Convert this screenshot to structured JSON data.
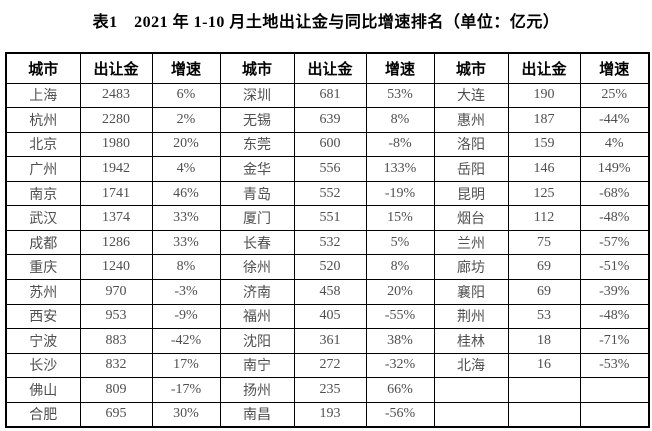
{
  "title": "表1　2021 年 1-10 月土地出让金与同比增速排名（单位：亿元）",
  "table": {
    "columns": [
      "城市",
      "出让金",
      "增速"
    ],
    "groups": [
      {
        "rows": [
          {
            "city": "上海",
            "amount": "2483",
            "growth": "6%"
          },
          {
            "city": "杭州",
            "amount": "2280",
            "growth": "2%"
          },
          {
            "city": "北京",
            "amount": "1980",
            "growth": "20%"
          },
          {
            "city": "广州",
            "amount": "1942",
            "growth": "4%"
          },
          {
            "city": "南京",
            "amount": "1741",
            "growth": "46%"
          },
          {
            "city": "武汉",
            "amount": "1374",
            "growth": "33%"
          },
          {
            "city": "成都",
            "amount": "1286",
            "growth": "33%"
          },
          {
            "city": "重庆",
            "amount": "1240",
            "growth": "8%"
          },
          {
            "city": "苏州",
            "amount": "970",
            "growth": "-3%"
          },
          {
            "city": "西安",
            "amount": "953",
            "growth": "-9%"
          },
          {
            "city": "宁波",
            "amount": "883",
            "growth": "-42%"
          },
          {
            "city": "长沙",
            "amount": "832",
            "growth": "17%"
          },
          {
            "city": "佛山",
            "amount": "809",
            "growth": "-17%"
          },
          {
            "city": "合肥",
            "amount": "695",
            "growth": "30%"
          }
        ]
      },
      {
        "rows": [
          {
            "city": "深圳",
            "amount": "681",
            "growth": "53%"
          },
          {
            "city": "无锡",
            "amount": "639",
            "growth": "8%"
          },
          {
            "city": "东莞",
            "amount": "600",
            "growth": "-8%"
          },
          {
            "city": "金华",
            "amount": "556",
            "growth": "133%"
          },
          {
            "city": "青岛",
            "amount": "552",
            "growth": "-19%"
          },
          {
            "city": "厦门",
            "amount": "551",
            "growth": "15%"
          },
          {
            "city": "长春",
            "amount": "532",
            "growth": "5%"
          },
          {
            "city": "徐州",
            "amount": "520",
            "growth": "8%"
          },
          {
            "city": "济南",
            "amount": "458",
            "growth": "20%"
          },
          {
            "city": "福州",
            "amount": "405",
            "growth": "-55%"
          },
          {
            "city": "沈阳",
            "amount": "361",
            "growth": "38%"
          },
          {
            "city": "南宁",
            "amount": "272",
            "growth": "-32%"
          },
          {
            "city": "扬州",
            "amount": "235",
            "growth": "66%"
          },
          {
            "city": "南昌",
            "amount": "193",
            "growth": "-56%"
          }
        ]
      },
      {
        "rows": [
          {
            "city": "大连",
            "amount": "190",
            "growth": "25%"
          },
          {
            "city": "惠州",
            "amount": "187",
            "growth": "-44%"
          },
          {
            "city": "洛阳",
            "amount": "159",
            "growth": "4%"
          },
          {
            "city": "岳阳",
            "amount": "146",
            "growth": "149%"
          },
          {
            "city": "昆明",
            "amount": "125",
            "growth": "-68%"
          },
          {
            "city": "烟台",
            "amount": "112",
            "growth": "-48%"
          },
          {
            "city": "兰州",
            "amount": "75",
            "growth": "-57%"
          },
          {
            "city": "廊坊",
            "amount": "69",
            "growth": "-51%"
          },
          {
            "city": "襄阳",
            "amount": "69",
            "growth": "-39%"
          },
          {
            "city": "荆州",
            "amount": "53",
            "growth": "-48%"
          },
          {
            "city": "桂林",
            "amount": "18",
            "growth": "-71%"
          },
          {
            "city": "北海",
            "amount": "16",
            "growth": "-53%"
          },
          {
            "city": "",
            "amount": "",
            "growth": ""
          },
          {
            "city": "",
            "amount": "",
            "growth": ""
          }
        ]
      }
    ]
  }
}
